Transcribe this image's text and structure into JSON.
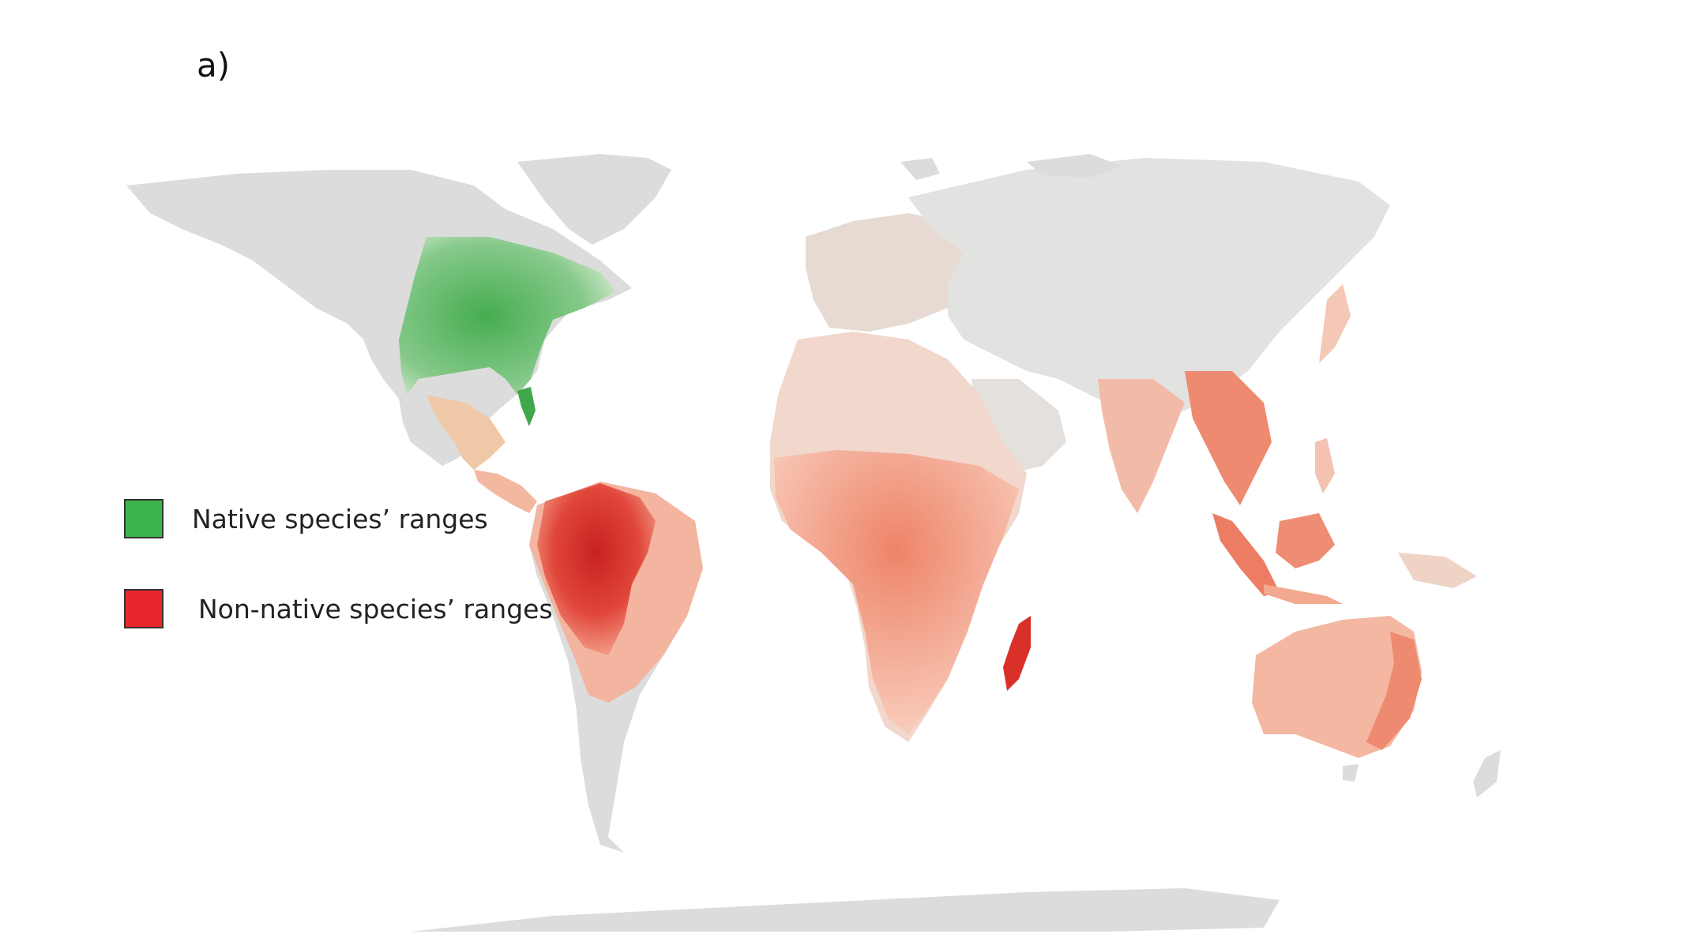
{
  "panel_label": "a)",
  "legend": [
    {
      "label": "Native species’ ranges",
      "color": "#3cb44b"
    },
    {
      "label": "Non-native species’ ranges",
      "color": "#e8262b"
    }
  ],
  "colors": {
    "land": "#dcdcdc",
    "native_light": "#a8d8a3",
    "native_dark": "#3ea84a",
    "nonnative_light": "#f7c9b8",
    "nonnative_mid": "#ef8a6e",
    "nonnative_dark": "#d9302a",
    "background": "#ffffff"
  }
}
